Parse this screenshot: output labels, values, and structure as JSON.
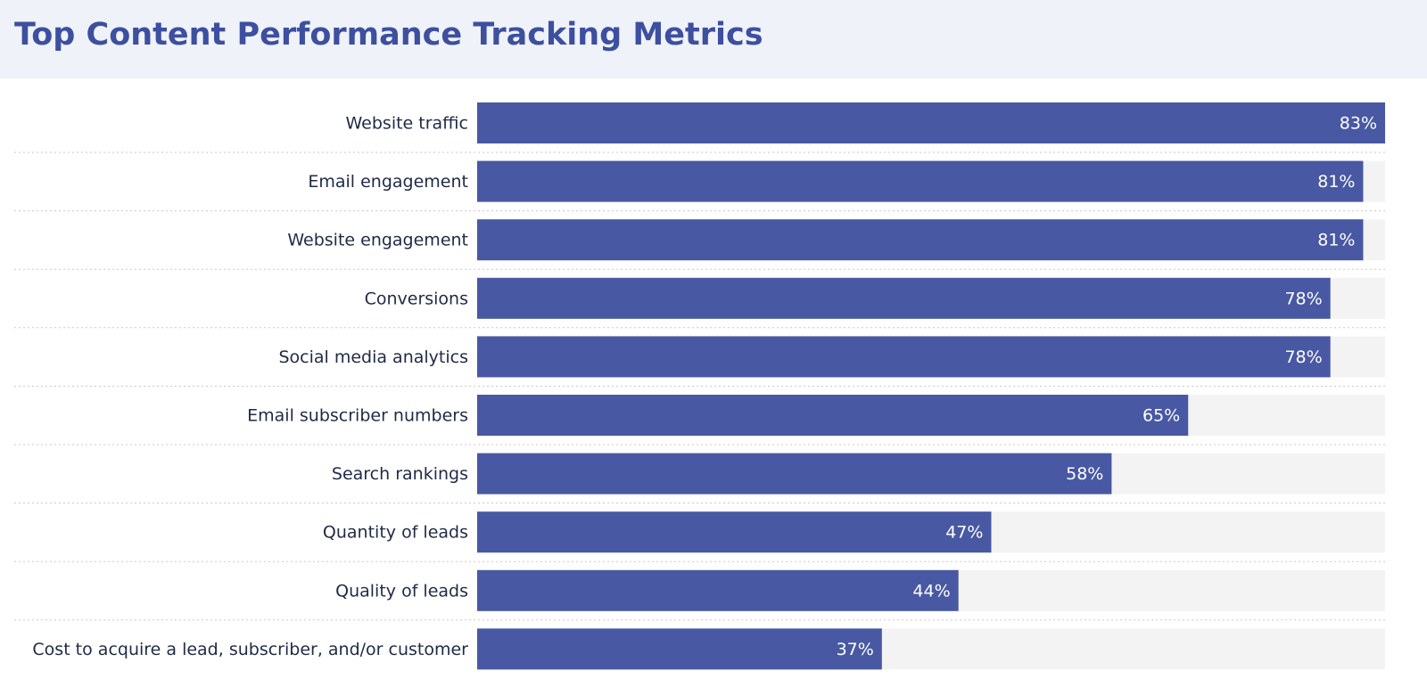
{
  "chart_data": {
    "type": "bar",
    "orientation": "horizontal",
    "title": "Top Content Performance Tracking Metrics",
    "categories": [
      "Website traffic",
      "Email engagement",
      "Website engagement",
      "Conversions",
      "Social media analytics",
      "Email subscriber numbers",
      "Search rankings",
      "Quantity of leads",
      "Quality of leads",
      "Cost to acquire a lead, subscriber, and/or customer"
    ],
    "values": [
      83,
      81,
      81,
      78,
      78,
      65,
      58,
      47,
      44,
      37
    ],
    "value_labels": [
      "83%",
      "81%",
      "81%",
      "78%",
      "78%",
      "65%",
      "58%",
      "47%",
      "44%",
      "37%"
    ],
    "color": "#4858a2",
    "xlim": [
      0,
      83
    ]
  }
}
